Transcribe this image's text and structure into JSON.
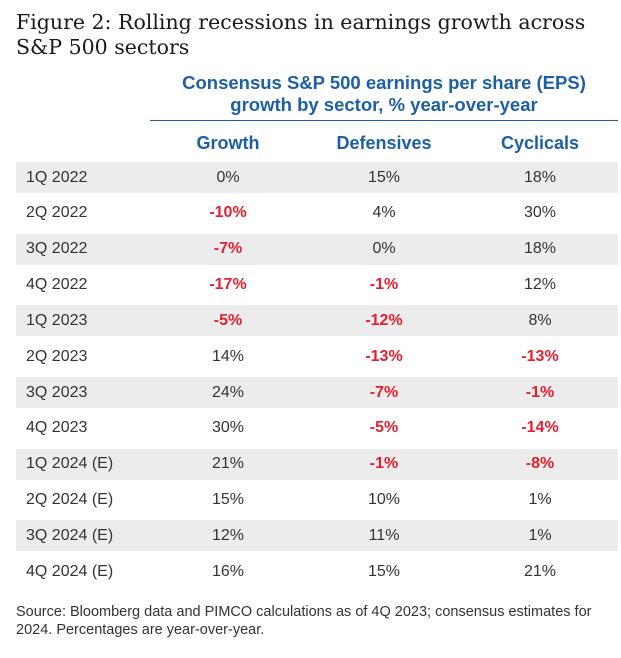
{
  "figure_title": "Figure 2: Rolling recessions in earnings growth across S&P 500 sectors",
  "source_note": "Source: Bloomberg data and PIMCO calculations as of 4Q 2023; consensus estimates for 2024. Percentages are year-over-year.",
  "colors": {
    "header_blue": "#1d5fa7",
    "negative_red": "#e5202e",
    "stripe_gray": "#ececec"
  },
  "chart_data": {
    "type": "table",
    "title": "Consensus S&P 500 earnings per share (EPS) growth by sector, % year-over-year",
    "columns": [
      "Growth",
      "Defensives",
      "Cyclicals"
    ],
    "unit": "%",
    "rows": [
      {
        "label": "1Q 2022",
        "values": [
          "0%",
          "15%",
          "18%"
        ]
      },
      {
        "label": "2Q 2022",
        "values": [
          "-10%",
          "4%",
          "30%"
        ]
      },
      {
        "label": "3Q 2022",
        "values": [
          "-7%",
          "0%",
          "18%"
        ]
      },
      {
        "label": "4Q 2022",
        "values": [
          "-17%",
          "-1%",
          "12%"
        ]
      },
      {
        "label": "1Q 2023",
        "values": [
          "-5%",
          "-12%",
          "8%"
        ]
      },
      {
        "label": "2Q 2023",
        "values": [
          "14%",
          "-13%",
          "-13%"
        ]
      },
      {
        "label": "3Q 2023",
        "values": [
          "24%",
          "-7%",
          "-1%"
        ]
      },
      {
        "label": "4Q 2023",
        "values": [
          "30%",
          "-5%",
          "-14%"
        ]
      },
      {
        "label": "1Q 2024 (E)",
        "values": [
          "21%",
          "-1%",
          "-8%"
        ]
      },
      {
        "label": "2Q 2024 (E)",
        "values": [
          "15%",
          "10%",
          "1%"
        ]
      },
      {
        "label": "3Q 2024 (E)",
        "values": [
          "12%",
          "11%",
          "1%"
        ]
      },
      {
        "label": "4Q 2024 (E)",
        "values": [
          "16%",
          "15%",
          "21%"
        ]
      }
    ]
  }
}
